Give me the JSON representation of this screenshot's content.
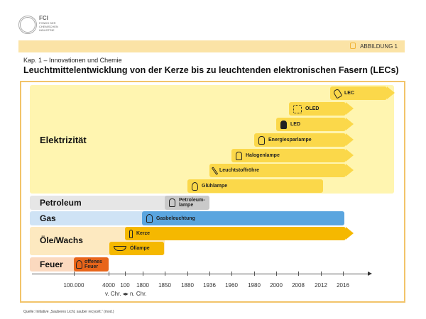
{
  "header": {
    "logo_text": "FCI",
    "logo_sub": "FONDS DER CHEMISCHEN INDUSTRIE",
    "badge": "ABBILDUNG 1",
    "chapter": "Kap. 1 – Innovationen und Chemie",
    "title": "Leuchtmittelentwicklung von der Kerze bis zu leuchtenden elektronischen Fasern (LECs)"
  },
  "categories": {
    "elektrizitaet": "Elektrizität",
    "petroleum": "Petroleum",
    "gas": "Gas",
    "oele": "Öle/Wachs",
    "feuer": "Feuer"
  },
  "bars": {
    "lec": "LEC",
    "oled": "OLED",
    "led": "LED",
    "energiespar": "Energiesparlampe",
    "halogen": "Halogenlampe",
    "leuchtstoff": "Leuchtstoffröhre",
    "gluehlampe": "Glühlampe",
    "petroleumlampe": "Petroleum-lampe",
    "gas": "Gasbeleuchtung",
    "kerze": "Kerze",
    "oellampe": "Öllampe",
    "feuer": "offenes Feuer"
  },
  "axis": {
    "ticks": [
      "100.000",
      "4000",
      "100",
      "1800",
      "1850",
      "1880",
      "1936",
      "1960",
      "1980",
      "2000",
      "2008",
      "2012",
      "2016"
    ],
    "era": "v. Chr. ◂▸ n. Chr."
  },
  "colors": {
    "electric": "#fbd84a",
    "electric_bg": "#fff5b0",
    "petroleum": "#c9c9c9",
    "gas": "#5aa5df",
    "oil": "#f5b800",
    "fire": "#e8651a"
  },
  "source": "Quelle: Initiative „Sauberes Licht, sauber recycelt.“ (mod.)"
}
